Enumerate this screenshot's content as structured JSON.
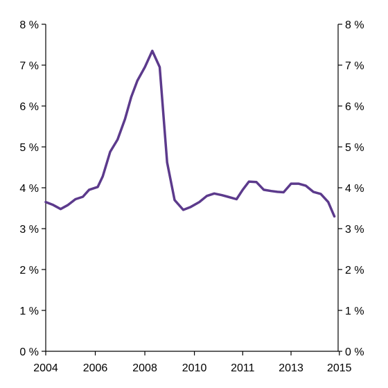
{
  "chart_data": {
    "type": "line",
    "title": "",
    "xlabel": "",
    "ylabel": "",
    "xlim": [
      2004,
      2015.8
    ],
    "ylim": [
      0,
      8
    ],
    "grid": false,
    "dual_y_axis": true,
    "x_ticks": [
      {
        "value": 2004,
        "label": "2004"
      },
      {
        "value": 2006,
        "label": "2006"
      },
      {
        "value": 2008,
        "label": "2008"
      },
      {
        "value": 2010,
        "label": "2010"
      },
      {
        "value": 2011.95,
        "label": "2011"
      },
      {
        "value": 2013.9,
        "label": "2013"
      },
      {
        "value": 2015.85,
        "label": "2015"
      }
    ],
    "y_ticks": [
      {
        "value": 0,
        "label": "0 %"
      },
      {
        "value": 1,
        "label": "1 %"
      },
      {
        "value": 2,
        "label": "2 %"
      },
      {
        "value": 3,
        "label": "3 %"
      },
      {
        "value": 4,
        "label": "4 %"
      },
      {
        "value": 5,
        "label": "5 %"
      },
      {
        "value": 6,
        "label": "6 %"
      },
      {
        "value": 7,
        "label": "7 %"
      },
      {
        "value": 8,
        "label": "8 %"
      }
    ],
    "series": [
      {
        "color": "#5c3a8c",
        "x": [
          2004.0,
          2004.3,
          2004.6,
          2004.9,
          2005.2,
          2005.5,
          2005.75,
          2006.1,
          2006.3,
          2006.6,
          2006.9,
          2007.2,
          2007.45,
          2007.7,
          2008.0,
          2008.3,
          2008.6,
          2008.9,
          2009.2,
          2009.55,
          2009.85,
          2010.2,
          2010.5,
          2010.8,
          2011.1,
          2011.35,
          2011.7,
          2011.95,
          2012.2,
          2012.5,
          2012.8,
          2013.1,
          2013.35,
          2013.6,
          2013.9,
          2014.2,
          2014.5,
          2014.8,
          2015.1,
          2015.4,
          2015.65
        ],
        "y": [
          3.65,
          3.58,
          3.48,
          3.58,
          3.72,
          3.78,
          3.95,
          4.02,
          4.28,
          4.88,
          5.18,
          5.68,
          6.22,
          6.62,
          6.95,
          7.35,
          6.95,
          4.62,
          3.7,
          3.46,
          3.53,
          3.65,
          3.8,
          3.86,
          3.82,
          3.78,
          3.72,
          3.95,
          4.15,
          4.14,
          3.95,
          3.92,
          3.9,
          3.89,
          4.1,
          4.1,
          4.05,
          3.9,
          3.85,
          3.65,
          3.3
        ]
      }
    ]
  }
}
